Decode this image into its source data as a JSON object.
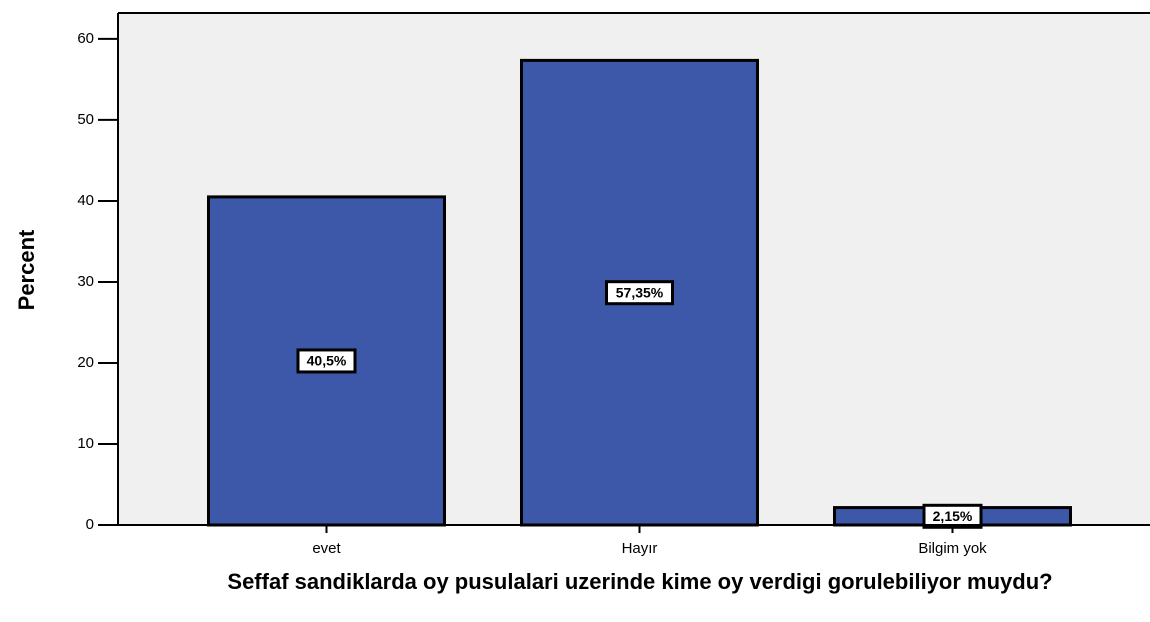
{
  "chart_data": {
    "type": "bar",
    "y_label": "Percent",
    "x_label": "Seffaf sandiklarda oy pusulalari uzerinde kime oy verdigi gorulebiliyor muydu?",
    "categories": [
      "evet",
      "Hayır",
      "Bilgim yok"
    ],
    "values": [
      40.5,
      57.35,
      2.15
    ],
    "value_labels": [
      "40,5%",
      "57,35%",
      "2,15%"
    ],
    "color": "#3d58a8",
    "ylim": [
      0,
      63.2
    ],
    "yticks": [
      0,
      10,
      20,
      30,
      40,
      50,
      60
    ],
    "grid": false
  }
}
